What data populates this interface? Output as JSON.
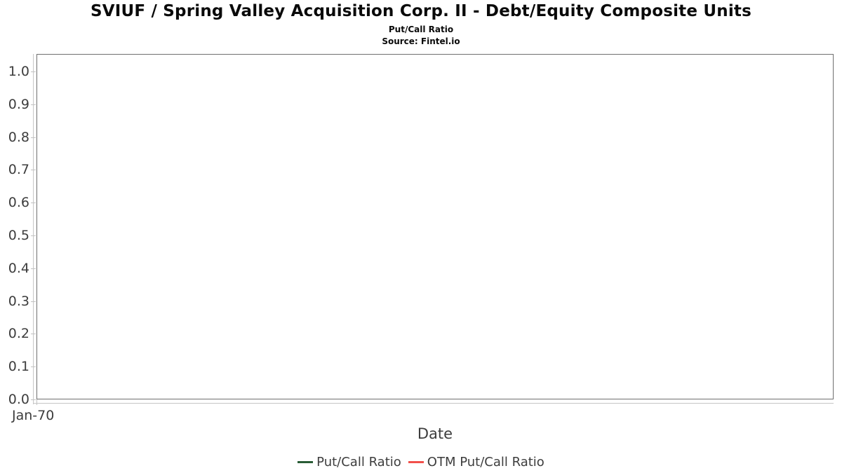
{
  "header": {
    "title": "SVIUF / Spring Valley Acquisition Corp. II - Debt/Equity Composite Units",
    "subtitle": "Put/Call Ratio",
    "source": "Source: Fintel.io"
  },
  "chart_data": {
    "type": "line",
    "title": "SVIUF / Spring Valley Acquisition Corp. II - Debt/Equity Composite Units",
    "subtitle": "Put/Call Ratio",
    "source": "Source: Fintel.io",
    "xlabel": "Date",
    "ylabel": "",
    "x_tick_labels": [
      "Jan-70"
    ],
    "y_tick_labels": [
      "0.0",
      "0.1",
      "0.2",
      "0.3",
      "0.4",
      "0.5",
      "0.6",
      "0.7",
      "0.8",
      "0.9",
      "1.0"
    ],
    "ylim": [
      0.0,
      1.05
    ],
    "grid": "horizontal-only",
    "legend_position": "bottom-center",
    "plot_empty": true,
    "series": [
      {
        "name": "Put/Call Ratio",
        "color": "#295c36",
        "x": [],
        "values": []
      },
      {
        "name": "OTM Put/Call Ratio",
        "color": "#f2504b",
        "x": [],
        "values": []
      }
    ]
  },
  "colors": {
    "frame_border": "#6f6f6f",
    "axis_line": "#c6c6c6",
    "gridline": "#e7e7e7",
    "tick_label_color": "#3d3d3d",
    "title_color": "#0a0a0a"
  }
}
